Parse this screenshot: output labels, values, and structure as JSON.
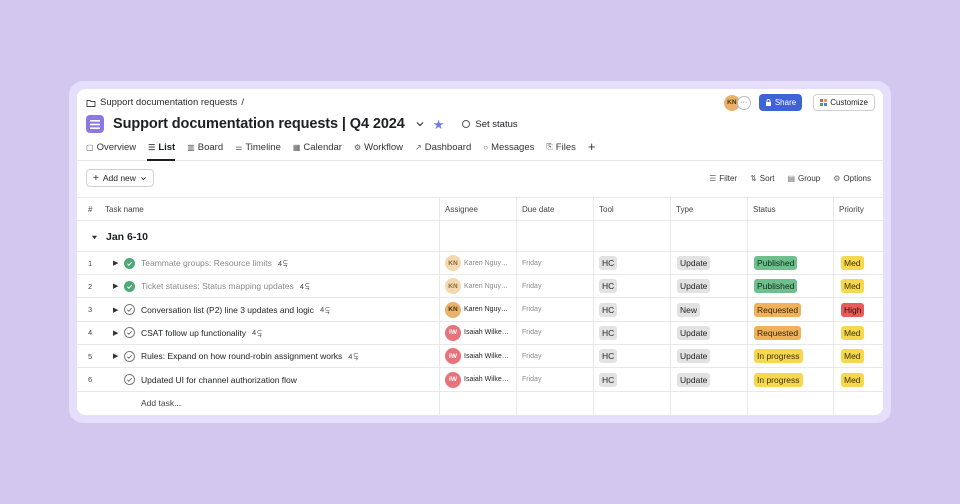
{
  "breadcrumb": {
    "label": "Support documentation requests",
    "separator": "/"
  },
  "project": {
    "title": "Support documentation requests | Q4 2024",
    "set_status": "Set status",
    "accent": "#8d76e6"
  },
  "header_actions": {
    "avatar": "KN",
    "more": "···",
    "share": "Share",
    "customize": "Customize"
  },
  "tabs": [
    {
      "label": "Overview",
      "icon": "overview-icon",
      "glyph": "▢"
    },
    {
      "label": "List",
      "icon": "list-icon",
      "glyph": "☰",
      "active": true
    },
    {
      "label": "Board",
      "icon": "board-icon",
      "glyph": "▥"
    },
    {
      "label": "Timeline",
      "icon": "timeline-icon",
      "glyph": "⚌"
    },
    {
      "label": "Calendar",
      "icon": "calendar-icon",
      "glyph": "▦"
    },
    {
      "label": "Workflow",
      "icon": "workflow-icon",
      "glyph": "⚙"
    },
    {
      "label": "Dashboard",
      "icon": "dashboard-icon",
      "glyph": "↗"
    },
    {
      "label": "Messages",
      "icon": "messages-icon",
      "glyph": "○"
    },
    {
      "label": "Files",
      "icon": "files-icon",
      "glyph": "⎘"
    }
  ],
  "toolbar": {
    "add_new": "Add new",
    "filter": "Filter",
    "sort": "Sort",
    "group": "Group",
    "options": "Options"
  },
  "columns": {
    "num": "#",
    "task": "Task name",
    "assignee": "Assignee",
    "due": "Due date",
    "tool": "Tool",
    "type": "Type",
    "status": "Status",
    "priority": "Priority"
  },
  "group": {
    "label": "Jan 6-10"
  },
  "rows": [
    {
      "num": "1",
      "name": "Teammate groups: Resource limits",
      "subtasks": "4",
      "done": true,
      "has_caret": true,
      "initials": "KN",
      "assignee": "Karen Nguy…",
      "due": "Friday",
      "tool": "HC",
      "type": "Update",
      "status": "Published",
      "priority": "Med"
    },
    {
      "num": "2",
      "name": "Ticket statuses: Status mapping updates",
      "subtasks": "4",
      "done": true,
      "has_caret": true,
      "initials": "KN",
      "assignee": "Karen Nguy…",
      "due": "Friday",
      "tool": "HC",
      "type": "Update",
      "status": "Published",
      "priority": "Med"
    },
    {
      "num": "3",
      "name": "Conversation list (P2) line 3 updates and logic",
      "subtasks": "4",
      "done": false,
      "has_caret": true,
      "initials": "KN",
      "assignee": "Karen Nguy…",
      "due": "Friday",
      "tool": "HC",
      "type": "New",
      "status": "Requested",
      "priority": "High"
    },
    {
      "num": "4",
      "name": "CSAT follow up functionality",
      "subtasks": "4",
      "done": false,
      "has_caret": true,
      "initials": "IW",
      "assignee": "Isaiah Wilke…",
      "due": "Friday",
      "tool": "HC",
      "type": "Update",
      "status": "Requested",
      "priority": "Med"
    },
    {
      "num": "5",
      "name": "Rules: Expand on how round-robin assignment works",
      "subtasks": "4",
      "done": false,
      "has_caret": true,
      "initials": "IW",
      "assignee": "Isaiah Wilke…",
      "due": "Friday",
      "tool": "HC",
      "type": "Update",
      "status": "In progress",
      "priority": "Med"
    },
    {
      "num": "6",
      "name": "Updated UI for channel authorization flow",
      "subtasks": "",
      "done": false,
      "has_caret": false,
      "initials": "IW",
      "assignee": "Isaiah Wilke…",
      "due": "Friday",
      "tool": "HC",
      "type": "Update",
      "status": "In progress",
      "priority": "Med"
    }
  ],
  "add_task": "Add task...",
  "colors": {
    "published": "#6ebf8b",
    "requested": "#efb15a",
    "in_progress": "#f6d84f",
    "high": "#e85b5b",
    "med": "#f6d84f",
    "share": "#3d63d6"
  }
}
